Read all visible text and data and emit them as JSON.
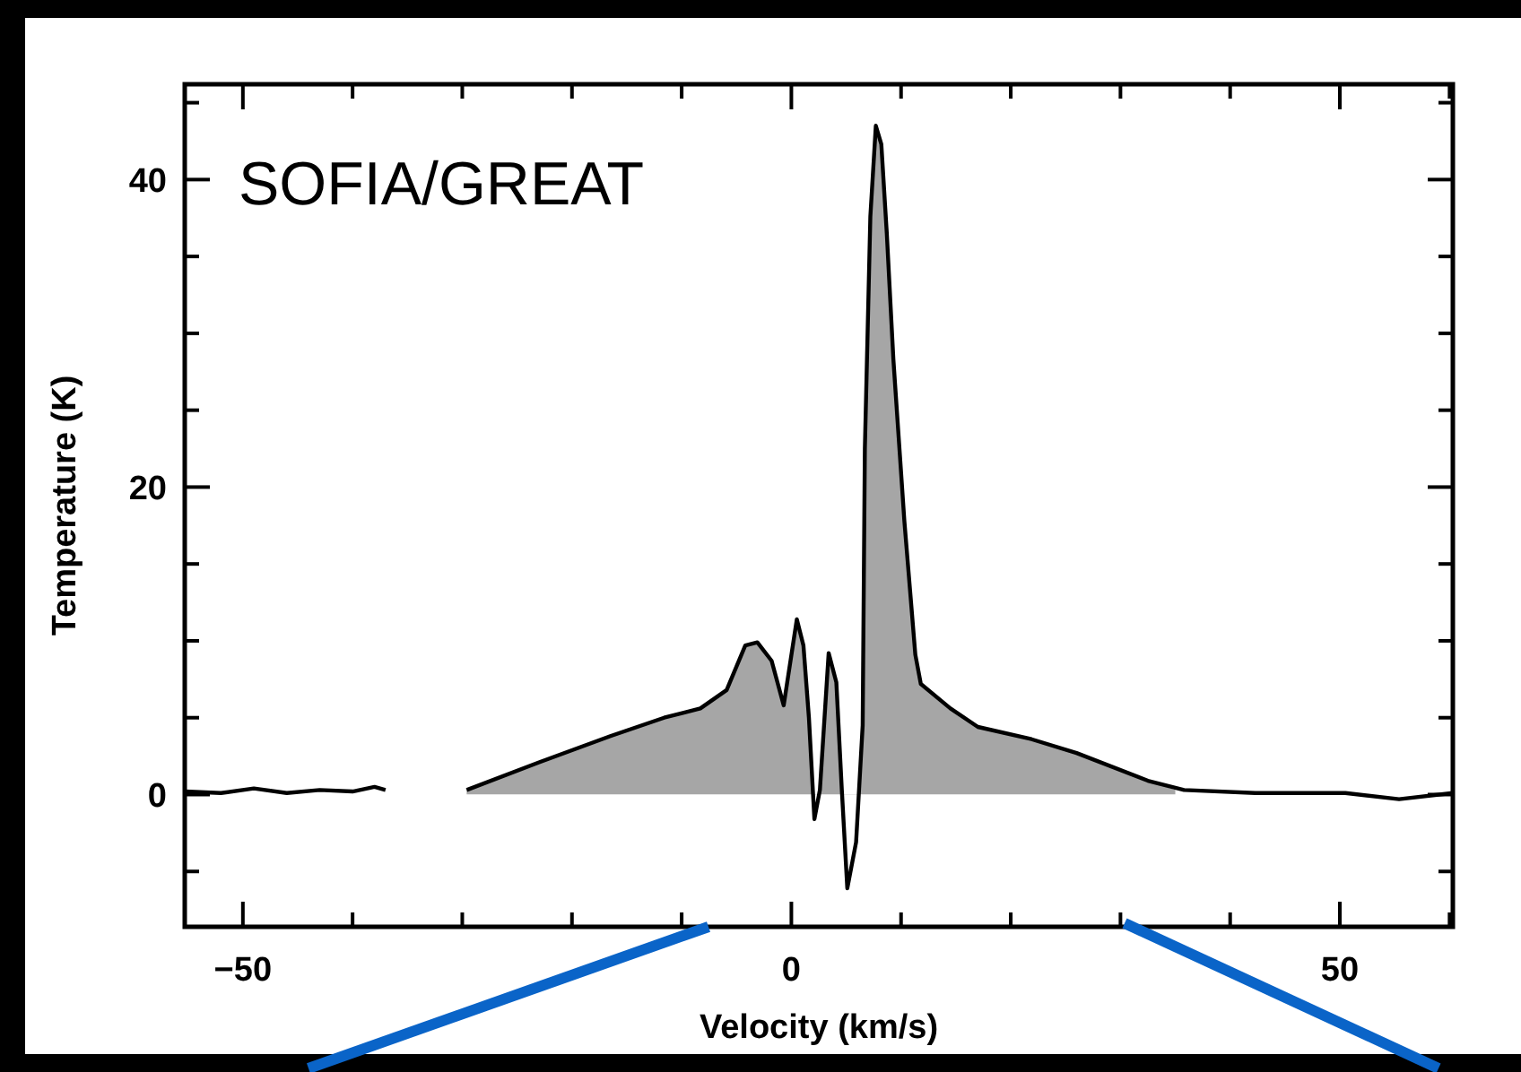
{
  "chart_data": {
    "type": "line",
    "xlabel": "Velocity (km/s)",
    "ylabel": "Temperature (K)",
    "annotations": [
      "SOFIA/GREAT"
    ],
    "xlim": [
      -55.3,
      60.3
    ],
    "ylim": [
      -8.6,
      46.2
    ],
    "xticks": [
      -50,
      {
        "value": -40,
        "label": null
      },
      {
        "value": -30,
        "label": null
      },
      {
        "value": -20,
        "label": null
      },
      {
        "value": -10,
        "label": null
      },
      0,
      {
        "value": 10,
        "label": null
      },
      {
        "value": 20,
        "label": null
      },
      {
        "value": 30,
        "label": null
      },
      {
        "value": 40,
        "label": null
      },
      50,
      {
        "value": 60,
        "label": null
      }
    ],
    "yticks": [
      {
        "value": -5,
        "label": null
      },
      0,
      {
        "value": 5,
        "label": null
      },
      {
        "value": 10,
        "label": null
      },
      {
        "value": 15,
        "label": null
      },
      20,
      {
        "value": 25,
        "label": null
      },
      {
        "value": 30,
        "label": null
      },
      {
        "value": 35,
        "label": null
      },
      40,
      {
        "value": 45,
        "label": null
      }
    ],
    "grid": false,
    "marker": "none",
    "line_style": "solid",
    "series": [
      {
        "type": "area",
        "color": "#a6a6a6",
        "x": [
          -29.6,
          -23,
          -16.5,
          -11.6,
          -8.3,
          -5.9,
          -4.2,
          -3.1,
          -1.8,
          -0.7,
          0.5,
          1.1,
          1.6,
          2.1,
          2.6,
          3.4,
          4.1,
          4.6,
          5.1,
          5.9,
          6.5,
          6.7,
          7.2,
          7.7,
          8.2,
          8.7,
          9.3,
          10.3,
          11.3,
          11.8,
          14.5,
          17.0,
          21.9,
          26.0,
          32.5,
          35.0
        ],
        "values": [
          0.3,
          2.1,
          3.8,
          5.0,
          5.6,
          6.8,
          9.7,
          9.9,
          8.7,
          5.8,
          11.4,
          9.7,
          5.0,
          -1.6,
          0.3,
          9.2,
          7.3,
          0.3,
          -6.1,
          -3.1,
          4.5,
          22.5,
          37.6,
          43.5,
          42.3,
          36.5,
          28.3,
          17.8,
          9.1,
          7.2,
          5.6,
          4.4,
          3.6,
          2.7,
          0.9,
          0.3
        ]
      },
      {
        "color": "#000000",
        "x": [
          -55.3,
          -52,
          -49,
          -46,
          -43,
          -40,
          -38,
          -37,
          -36.9,
          -29.6,
          -23,
          -16.5,
          -11.6,
          -8.3,
          -5.9,
          -4.2,
          -3.1,
          -1.8,
          -0.7,
          0.5,
          1.1,
          1.6,
          2.1,
          2.6,
          3.4,
          4.1,
          4.6,
          5.1,
          5.9,
          6.5,
          6.7,
          7.2,
          7.7,
          8.2,
          8.7,
          9.3,
          10.3,
          11.3,
          11.8,
          14.5,
          17.0,
          21.9,
          26.0,
          32.5,
          35.8,
          42.3,
          50.5,
          55.4,
          60.3
        ],
        "values": [
          0.2,
          0.1,
          0.4,
          0.1,
          0.3,
          0.2,
          0.5,
          0.3,
          null,
          0.3,
          2.1,
          3.8,
          5.0,
          5.6,
          6.8,
          9.7,
          9.9,
          8.7,
          5.8,
          11.4,
          9.7,
          5.0,
          -1.6,
          0.3,
          9.2,
          7.3,
          0.3,
          -6.1,
          -3.1,
          4.5,
          22.5,
          37.6,
          43.5,
          42.3,
          36.5,
          28.3,
          17.8,
          9.1,
          7.2,
          5.6,
          4.4,
          3.6,
          2.7,
          0.9,
          0.3,
          0.1,
          0.1,
          -0.3,
          0.1
        ]
      }
    ]
  }
}
